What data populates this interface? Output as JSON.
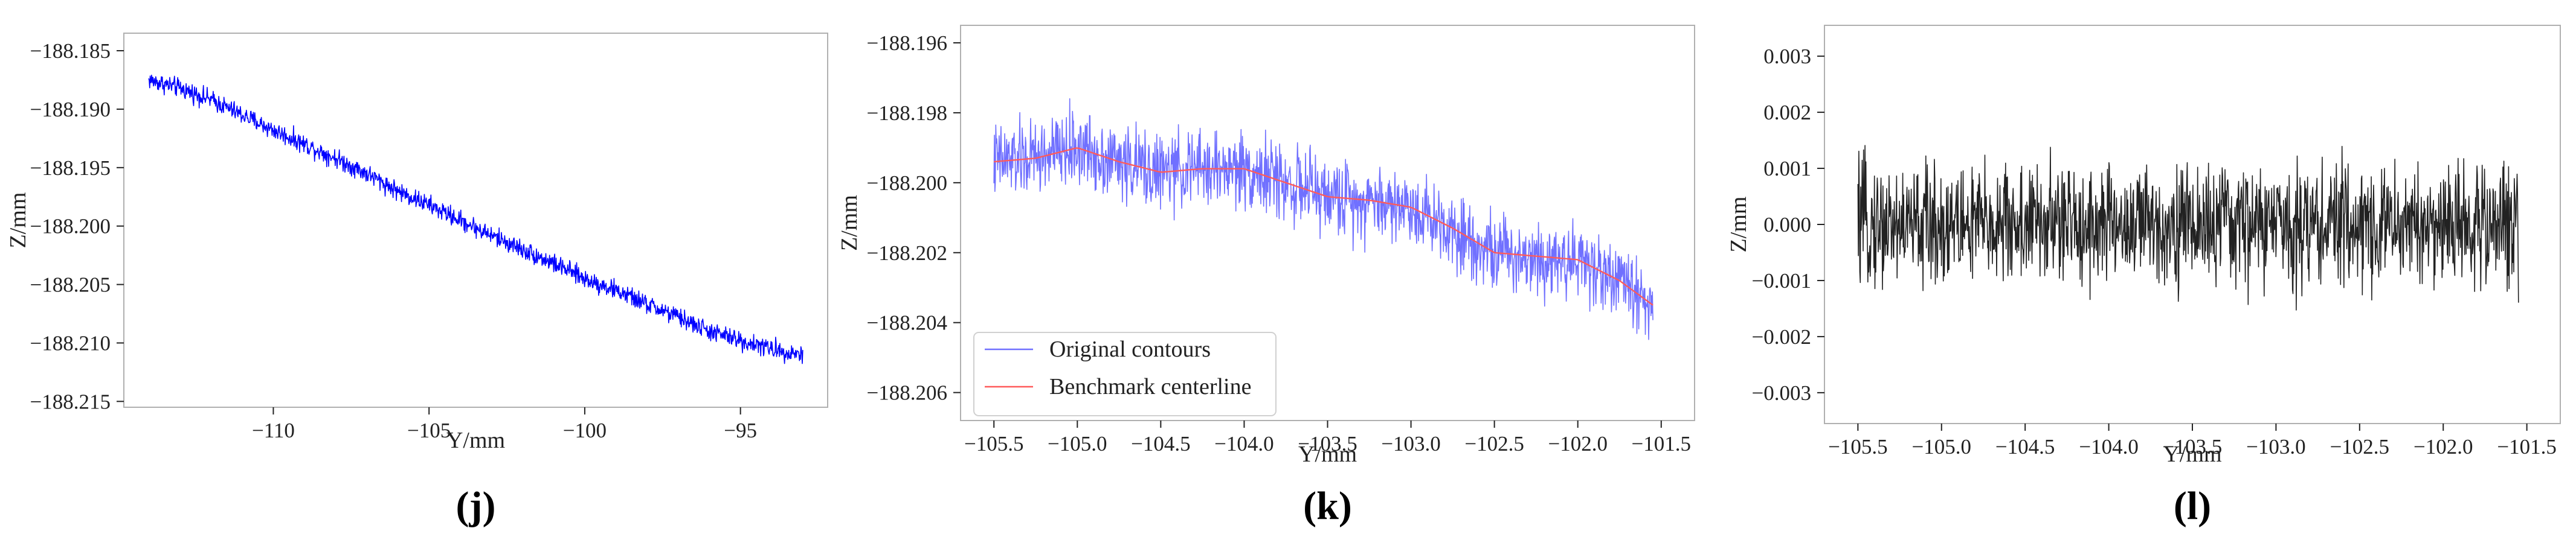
{
  "chart_data": [
    {
      "type": "line",
      "panel_label": "(j)",
      "xlabel": "Y/mm",
      "ylabel": "Z/mm",
      "xlim": [
        -114.8,
        -92.2
      ],
      "ylim": [
        -188.2155,
        -188.1835
      ],
      "xticks": [
        -110,
        -105,
        -100,
        -95
      ],
      "xtick_labels": [
        "−110",
        "−105",
        "−100",
        "−95"
      ],
      "yticks": [
        -188.185,
        -188.19,
        -188.195,
        -188.2,
        -188.205,
        -188.21,
        -188.215
      ],
      "ytick_labels": [
        "−188.185",
        "−188.190",
        "−188.195",
        "−188.200",
        "−188.205",
        "−188.210",
        "−188.215"
      ],
      "grid": false,
      "series": [
        {
          "color": "#0000ff",
          "x": [
            -114.0,
            -113.0,
            -112.0,
            -111.0,
            -110.0,
            -109.0,
            -108.0,
            -107.0,
            -106.0,
            -105.0,
            -104.0,
            -103.0,
            -102.0,
            -101.0,
            -100.0,
            -99.0,
            -98.0,
            -97.0,
            -96.0,
            -95.0,
            -94.0,
            -93.0
          ],
          "y": [
            -188.1875,
            -188.1882,
            -188.1892,
            -188.1905,
            -188.1918,
            -188.193,
            -188.1942,
            -188.1955,
            -188.197,
            -188.1982,
            -188.1995,
            -188.2008,
            -188.202,
            -188.2032,
            -188.2045,
            -188.2055,
            -188.2067,
            -188.2078,
            -188.209,
            -188.2098,
            -188.2105,
            -188.211
          ],
          "noise_amplitude": 0.0012
        }
      ]
    },
    {
      "type": "line",
      "panel_label": "(k)",
      "xlabel": "Y/mm",
      "ylabel": "Z/mm",
      "xlim": [
        -105.7,
        -101.3
      ],
      "ylim": [
        -188.2068,
        -188.1955
      ],
      "xticks": [
        -105.5,
        -105.0,
        -104.5,
        -104.0,
        -103.5,
        -103.0,
        -102.5,
        -102.0,
        -101.5
      ],
      "xtick_labels": [
        "−105.5",
        "−105.0",
        "−104.5",
        "−104.0",
        "−103.5",
        "−103.0",
        "−102.5",
        "−102.0",
        "−101.5"
      ],
      "yticks": [
        -188.196,
        -188.198,
        -188.2,
        -188.202,
        -188.204,
        -188.206
      ],
      "ytick_labels": [
        "−188.196",
        "−188.198",
        "−188.200",
        "−188.202",
        "−188.204",
        "−188.206"
      ],
      "grid": false,
      "legend_position": "bottom-left",
      "series": [
        {
          "name": "Original contours",
          "color": "#7070ff",
          "x": [
            -105.5,
            -105.25,
            -105.0,
            -104.75,
            -104.5,
            -104.25,
            -104.0,
            -103.75,
            -103.5,
            -103.25,
            -103.0,
            -102.75,
            -102.5,
            -102.25,
            -102.0,
            -101.75,
            -101.55
          ],
          "y": [
            -188.1994,
            -188.1993,
            -188.199,
            -188.1994,
            -188.1997,
            -188.1996,
            -188.1996,
            -188.2,
            -188.2004,
            -188.2005,
            -188.2007,
            -188.2013,
            -188.202,
            -188.2021,
            -188.2022,
            -188.2028,
            -188.2035
          ],
          "noise_amplitude": 0.0016
        },
        {
          "name": "Benchmark centerline",
          "color": "#ff5a5a",
          "x": [
            -105.5,
            -105.25,
            -105.0,
            -104.75,
            -104.5,
            -104.25,
            -104.0,
            -103.75,
            -103.5,
            -103.25,
            -103.0,
            -102.75,
            -102.5,
            -102.25,
            -102.0,
            -101.75,
            -101.55
          ],
          "y": [
            -188.1994,
            -188.1993,
            -188.199,
            -188.1994,
            -188.1997,
            -188.1996,
            -188.1996,
            -188.2,
            -188.2004,
            -188.2005,
            -188.2007,
            -188.2013,
            -188.202,
            -188.2021,
            -188.2022,
            -188.2028,
            -188.2035
          ]
        }
      ]
    },
    {
      "type": "line",
      "panel_label": "(l)",
      "xlabel": "Y/mm",
      "ylabel": "Z/mm",
      "xlim": [
        -105.7,
        -101.3
      ],
      "ylim": [
        -0.00355,
        0.00355
      ],
      "xticks": [
        -105.5,
        -105.0,
        -104.5,
        -104.0,
        -103.5,
        -103.0,
        -102.5,
        -102.0,
        -101.5
      ],
      "xtick_labels": [
        "−105.5",
        "−105.0",
        "−104.5",
        "−104.0",
        "−103.5",
        "−103.0",
        "−102.5",
        "−102.0",
        "−101.5"
      ],
      "yticks": [
        0.003,
        0.002,
        0.001,
        0.0,
        -0.001,
        -0.002,
        -0.003
      ],
      "ytick_labels": [
        "0.003",
        "0.002",
        "0.001",
        "0.000",
        "−0.001",
        "−0.002",
        "−0.003"
      ],
      "grid": false,
      "series": [
        {
          "color": "#222222",
          "x": [
            -105.5,
            -101.55
          ],
          "y": [
            0.0,
            0.0
          ],
          "noise_amplitude": 0.0016
        }
      ]
    }
  ]
}
